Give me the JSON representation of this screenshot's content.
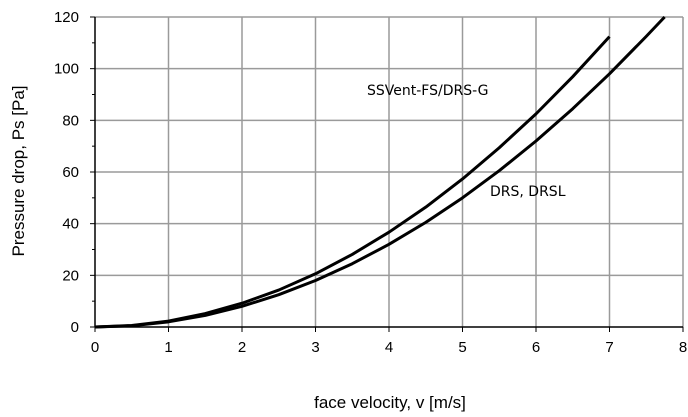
{
  "chart_data": {
    "type": "line",
    "title": "",
    "xlabel": "face velocity, v [m/s]",
    "ylabel": "Pressure drop, Ps [Pa]",
    "xlim": [
      0,
      8
    ],
    "ylim": [
      0,
      120
    ],
    "xticks": [
      "0",
      "1",
      "2",
      "3",
      "4",
      "5",
      "6",
      "7",
      "8"
    ],
    "yticks": [
      "0",
      "20",
      "40",
      "60",
      "80",
      "100",
      "120"
    ],
    "grid": true,
    "legend": "none",
    "series": [
      {
        "name": "SSVent-FS/DRS-G",
        "color": "#000000",
        "x": [
          0,
          0.5,
          1,
          1.5,
          2,
          2.5,
          3,
          3.5,
          4,
          4.5,
          5,
          5.5,
          6,
          6.5,
          7
        ],
        "y": [
          0,
          0.6,
          2.3,
          5.2,
          9.2,
          14.3,
          20.6,
          28.1,
          36.7,
          46.4,
          57.3,
          69.4,
          82.5,
          96.9,
          112.4
        ]
      },
      {
        "name": "DRS, DRSL",
        "color": "#000000",
        "x": [
          0,
          0.5,
          1,
          1.5,
          2,
          2.5,
          3,
          3.5,
          4,
          4.5,
          5,
          5.5,
          6,
          6.5,
          7,
          7.5,
          7.75
        ],
        "y": [
          0,
          0.5,
          2.0,
          4.5,
          8.0,
          12.5,
          18.0,
          24.5,
          32.0,
          40.5,
          50.0,
          60.5,
          72.0,
          84.5,
          98.0,
          112.5,
          120.0
        ]
      }
    ]
  }
}
